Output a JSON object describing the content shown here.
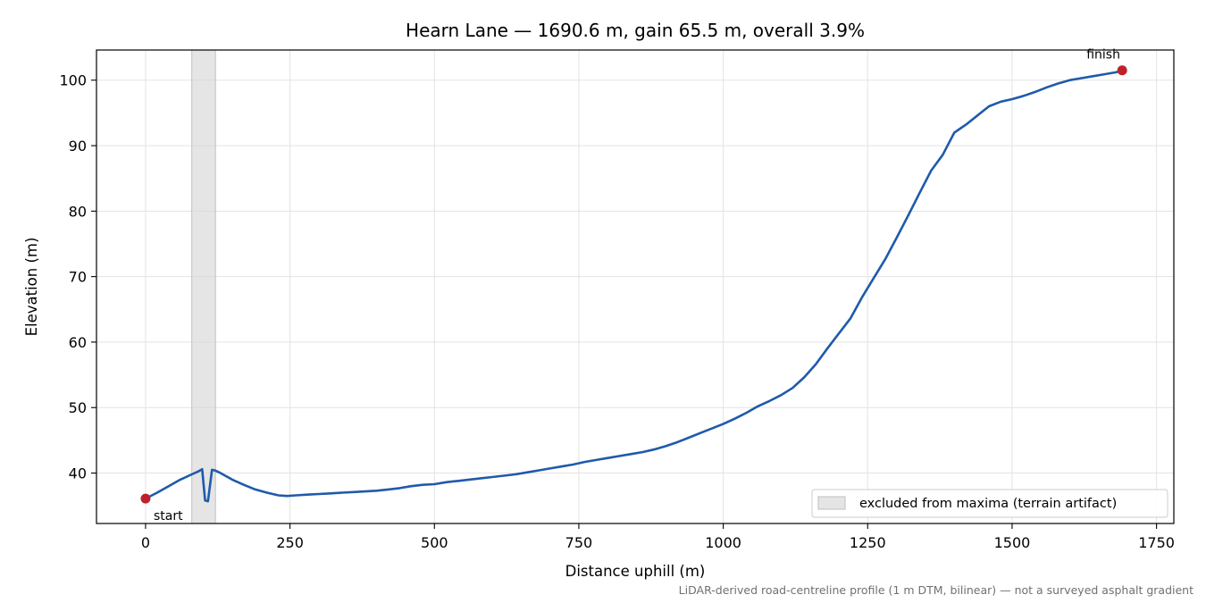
{
  "chart_data": {
    "type": "line",
    "title": "Hearn Lane — 1690.6 m, gain 65.5 m, overall 3.9%",
    "xlabel": "Distance uphill (m)",
    "ylabel": "Elevation (m)",
    "xlim": [
      -85,
      1780
    ],
    "ylim": [
      32.3,
      104.6
    ],
    "xticks": [
      0,
      250,
      500,
      750,
      1000,
      1250,
      1500,
      1750
    ],
    "yticks": [
      40,
      50,
      60,
      70,
      80,
      90,
      100
    ],
    "grid": true,
    "series": [
      {
        "color": "#1f5aab",
        "x": [
          0,
          20,
          40,
          60,
          80,
          90,
          98,
          103,
          108,
          115,
          120,
          130,
          150,
          170,
          190,
          210,
          230,
          245,
          260,
          280,
          300,
          320,
          340,
          360,
          380,
          400,
          420,
          440,
          460,
          480,
          500,
          520,
          540,
          560,
          580,
          600,
          620,
          640,
          660,
          680,
          700,
          720,
          740,
          760,
          780,
          800,
          820,
          840,
          860,
          880,
          900,
          920,
          940,
          960,
          980,
          1000,
          1020,
          1040,
          1060,
          1080,
          1100,
          1120,
          1140,
          1160,
          1180,
          1200,
          1220,
          1240,
          1260,
          1280,
          1300,
          1320,
          1340,
          1360,
          1380,
          1400,
          1410,
          1420,
          1440,
          1460,
          1480,
          1500,
          1520,
          1540,
          1560,
          1580,
          1600,
          1620,
          1640,
          1660,
          1680,
          1690.6
        ],
        "y": [
          36.1,
          37.0,
          38.0,
          39.0,
          39.8,
          40.2,
          40.6,
          35.8,
          35.7,
          40.5,
          40.4,
          40.0,
          39.0,
          38.2,
          37.5,
          37.0,
          36.6,
          36.5,
          36.6,
          36.7,
          36.8,
          36.9,
          37.0,
          37.1,
          37.2,
          37.3,
          37.5,
          37.7,
          38.0,
          38.2,
          38.3,
          38.6,
          38.8,
          39.0,
          39.2,
          39.4,
          39.6,
          39.8,
          40.1,
          40.4,
          40.7,
          41.0,
          41.3,
          41.7,
          42.0,
          42.3,
          42.6,
          42.9,
          43.2,
          43.6,
          44.1,
          44.7,
          45.4,
          46.1,
          46.8,
          47.5,
          48.3,
          49.2,
          50.2,
          51.0,
          51.9,
          53.0,
          54.6,
          56.6,
          59.0,
          61.3,
          63.6,
          66.8,
          69.7,
          72.6,
          75.9,
          79.3,
          82.8,
          86.2,
          88.6,
          92.0,
          92.6,
          93.2,
          94.6,
          96.0,
          96.7,
          97.1,
          97.6,
          98.2,
          98.9,
          99.5,
          100.0,
          100.3,
          100.6,
          100.9,
          101.2,
          101.5
        ]
      }
    ],
    "markers": [
      {
        "label": "start",
        "x": 0,
        "y": 36.1,
        "color": "#c0202a"
      },
      {
        "label": "finish",
        "x": 1690.6,
        "y": 101.5,
        "color": "#c0202a"
      }
    ],
    "excluded_region": {
      "x": [
        80,
        121
      ],
      "color": "#d3d3d3"
    },
    "legend": {
      "placement": "lower-right",
      "entries": [
        "excluded from maxima (terrain artifact)"
      ]
    },
    "footnote": "LiDAR-derived road-centreline profile (1 m DTM, bilinear) — not a surveyed asphalt gradient"
  }
}
